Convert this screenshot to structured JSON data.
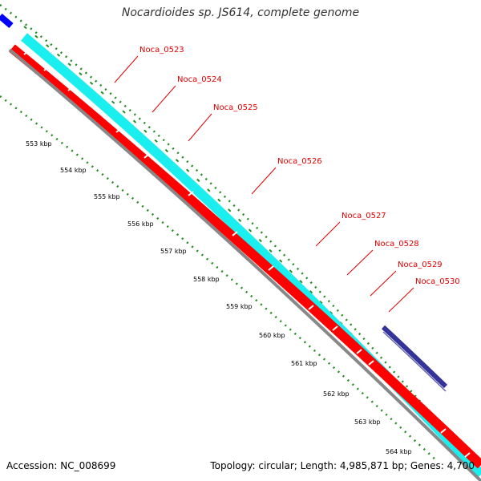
{
  "title": "Nocardioides sp. JS614, complete genome",
  "footer": {
    "accession": "Accession: NC_008699",
    "summary": "Topology: circular; Length: 4,985,871 bp; Genes: 4,700"
  },
  "colors": {
    "forward_strand": "#00ffff",
    "reverse_strand": "#ff0000",
    "dark_feature": "#333399",
    "blue_feature": "#0000ff",
    "backbone": "#888888",
    "tick_marks": "#228b22",
    "gene_label": "#e00000"
  },
  "scale_ticks": [
    "553 kbp",
    "554 kbp",
    "555 kbp",
    "556 kbp",
    "557 kbp",
    "558 kbp",
    "559 kbp",
    "560 kbp",
    "561 kbp",
    "562 kbp",
    "563 kbp",
    "564 kbp"
  ],
  "gene_labels": [
    "Noca_0523",
    "Noca_0524",
    "Noca_0525",
    "Noca_0526",
    "Noca_0527",
    "Noca_0528",
    "Noca_0529",
    "Noca_0530"
  ]
}
